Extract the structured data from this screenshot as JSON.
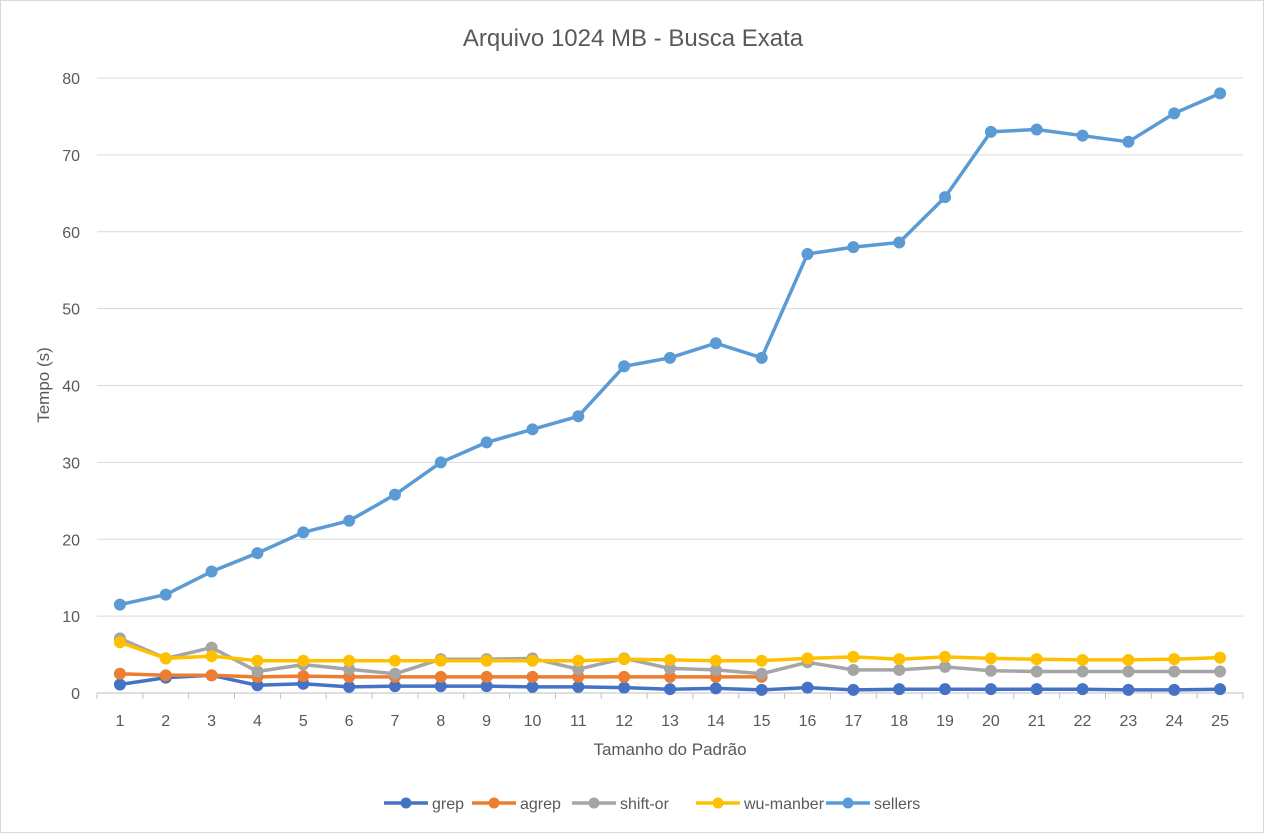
{
  "chart_data": {
    "type": "line",
    "title": "Arquivo 1024 MB - Busca Exata",
    "xlabel": "Tamanho do Padrão",
    "ylabel": "Tempo (s)",
    "x": [
      1,
      2,
      3,
      4,
      5,
      6,
      7,
      8,
      9,
      10,
      11,
      12,
      13,
      14,
      15,
      16,
      17,
      18,
      19,
      20,
      21,
      22,
      23,
      24,
      25
    ],
    "ylim": [
      0,
      80
    ],
    "yticks": [
      0,
      10,
      20,
      30,
      40,
      50,
      60,
      70,
      80
    ],
    "grid": true,
    "legend_position": "bottom",
    "series": [
      {
        "name": "grep",
        "color": "#4472C4",
        "values": [
          1.1,
          2.0,
          2.3,
          1.0,
          1.2,
          0.8,
          0.9,
          0.9,
          0.9,
          0.8,
          0.8,
          0.7,
          0.5,
          0.6,
          0.4,
          0.7,
          0.4,
          0.5,
          0.5,
          0.5,
          0.5,
          0.5,
          0.4,
          0.4,
          0.5
        ]
      },
      {
        "name": "agrep",
        "color": "#ED7D31",
        "values": [
          2.5,
          2.3,
          2.3,
          2.1,
          2.2,
          2.1,
          2.1,
          2.1,
          2.1,
          2.1,
          2.1,
          2.1,
          2.1,
          2.1,
          2.1,
          null,
          null,
          null,
          null,
          null,
          null,
          null,
          null,
          null,
          null
        ]
      },
      {
        "name": "shift-or",
        "color": "#A5A5A5",
        "values": [
          7.1,
          4.5,
          5.9,
          2.8,
          3.7,
          3.1,
          2.5,
          4.4,
          4.4,
          4.5,
          3.1,
          4.5,
          3.2,
          3.0,
          2.5,
          4.0,
          3.0,
          3.0,
          3.4,
          2.9,
          2.8,
          2.8,
          2.8,
          2.8,
          2.8
        ]
      },
      {
        "name": "wu-manber",
        "color": "#FFC000",
        "values": [
          6.6,
          4.5,
          4.8,
          4.2,
          4.2,
          4.2,
          4.2,
          4.2,
          4.2,
          4.2,
          4.2,
          4.4,
          4.3,
          4.2,
          4.2,
          4.5,
          4.7,
          4.4,
          4.7,
          4.5,
          4.4,
          4.3,
          4.3,
          4.4,
          4.6
        ]
      },
      {
        "name": "sellers",
        "color": "#5B9BD5",
        "values": [
          11.5,
          12.8,
          15.8,
          18.2,
          20.9,
          22.4,
          25.8,
          30.0,
          32.6,
          34.3,
          36.0,
          42.5,
          43.6,
          45.5,
          43.6,
          57.1,
          58.0,
          58.6,
          64.5,
          73.0,
          73.3,
          72.5,
          71.7,
          75.4,
          78.0
        ]
      }
    ]
  }
}
